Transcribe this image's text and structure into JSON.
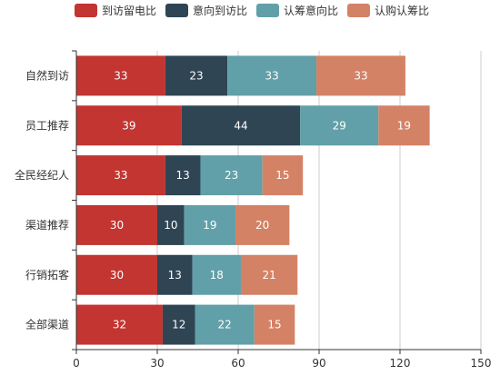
{
  "chart_data": {
    "type": "bar",
    "orientation": "horizontal",
    "stacked": true,
    "categories": [
      "全部渠道",
      "行销拓客",
      "渠道推荐",
      "全民经纪人",
      "员工推荐",
      "自然到访"
    ],
    "series": [
      {
        "name": "到访留电比",
        "color": "#c23531",
        "values": [
          32,
          30,
          30,
          33,
          39,
          33
        ]
      },
      {
        "name": "意向到访比",
        "color": "#2f4554",
        "values": [
          12,
          13,
          10,
          13,
          44,
          23
        ]
      },
      {
        "name": "认筹意向比",
        "color": "#61a0a8",
        "values": [
          22,
          18,
          19,
          23,
          29,
          33
        ]
      },
      {
        "name": "认购认筹比",
        "color": "#d48265",
        "values": [
          15,
          21,
          20,
          15,
          19,
          33
        ]
      }
    ],
    "xlim": [
      0,
      150
    ],
    "xticks": [
      0,
      30,
      60,
      90,
      120,
      150
    ],
    "grid": "vertical",
    "legend": "top-center"
  }
}
